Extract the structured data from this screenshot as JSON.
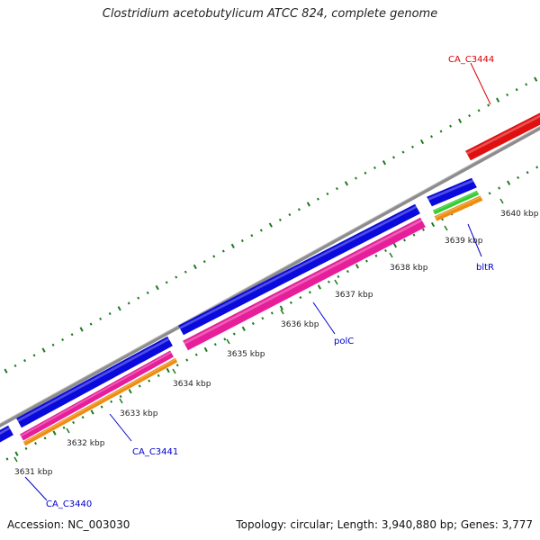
{
  "title": "Clostridium acetobutylicum ATCC 824, complete genome",
  "footer": {
    "accession": "Accession: NC_003030",
    "summary": "Topology: circular; Length: 3,940,880 bp; Genes: 3,777"
  },
  "ticks": [
    "3631 kbp",
    "3632 kbp",
    "3633 kbp",
    "3634 kbp",
    "3635 kbp",
    "3636 kbp",
    "3637 kbp",
    "3638 kbp",
    "3639 kbp",
    "3640 kbp"
  ],
  "gene_labels": [
    {
      "text": "CA_C3444",
      "color": "#dd0000"
    },
    {
      "text": "bltR",
      "color": "#0000cc"
    },
    {
      "text": "polC",
      "color": "#0000cc"
    },
    {
      "text": "CA_C3441",
      "color": "#0000cc"
    },
    {
      "text": "CA_C3440",
      "color": "#0000cc"
    }
  ],
  "colors": {
    "backbone": "#8c8c8c",
    "cds_blue": "#0a0adc",
    "cds_red": "#e01010",
    "cds_pink": "#e61e9a",
    "cds_orange": "#ee8c10",
    "cds_green": "#33cc33",
    "tick_marks": "#1e7a1e",
    "label_blue": "#0000cc",
    "label_red": "#dd0000"
  }
}
